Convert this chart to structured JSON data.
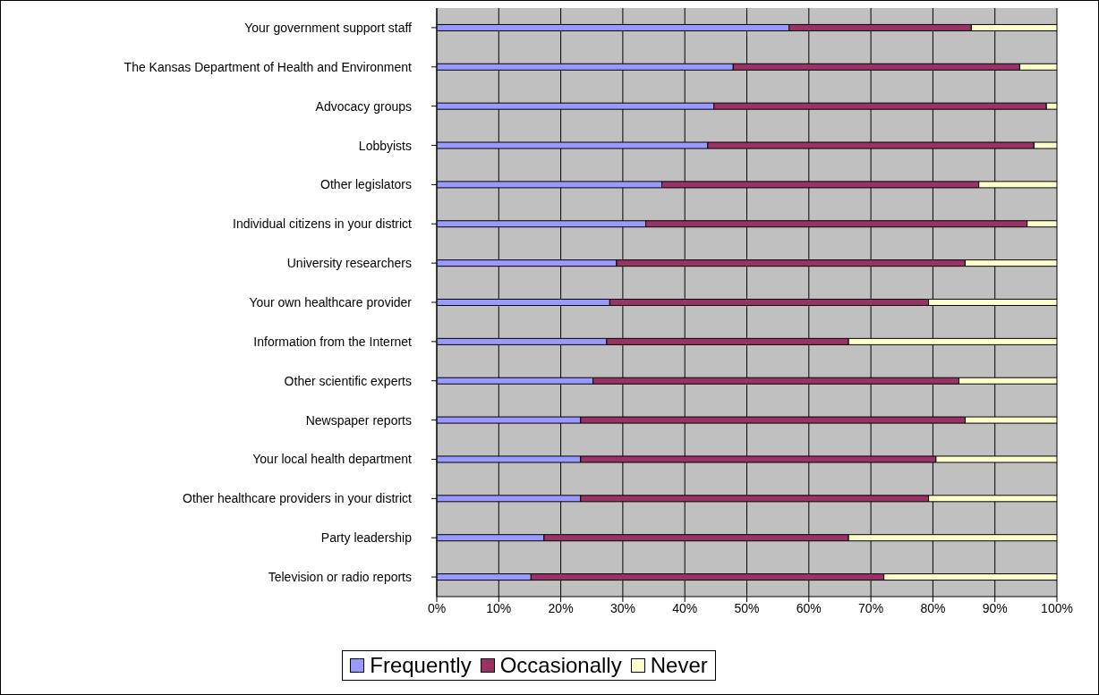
{
  "chart_data": {
    "type": "bar",
    "orientation": "horizontal",
    "stacked": true,
    "categories": [
      "Your government support staff",
      "The Kansas Department of Health and Environment",
      "Advocacy groups",
      "Lobbyists",
      "Other legislators",
      "Individual citizens in your district",
      "University researchers",
      "Your own healthcare provider",
      "Information from the Internet",
      "Other scientific experts",
      "Newspaper reports",
      "Your local health department",
      "Other healthcare providers in your district",
      "Party leadership",
      "Television or radio reports"
    ],
    "series": [
      {
        "name": "Frequently",
        "color": "#9999ff",
        "values": [
          56.8,
          47.8,
          44.7,
          43.7,
          36.3,
          33.7,
          29.0,
          27.9,
          27.4,
          25.2,
          23.2,
          23.2,
          23.2,
          17.3,
          15.2
        ]
      },
      {
        "name": "Occasionally",
        "color": "#993366",
        "values": [
          29.4,
          46.2,
          53.6,
          52.6,
          51.1,
          61.5,
          56.2,
          51.4,
          39.0,
          59.0,
          62.0,
          57.3,
          56.1,
          49.1,
          56.9
        ]
      },
      {
        "name": "Never",
        "color": "#ffffcc",
        "values": [
          13.8,
          6.0,
          1.7,
          3.7,
          12.6,
          4.8,
          14.8,
          20.7,
          33.6,
          15.8,
          14.8,
          19.5,
          20.7,
          33.6,
          27.9
        ]
      }
    ],
    "xlim": [
      0,
      100
    ],
    "xticks": [
      {
        "value": 0,
        "label": "0%"
      },
      {
        "value": 10,
        "label": "10%"
      },
      {
        "value": 20,
        "label": "20%"
      },
      {
        "value": 30,
        "label": "30%"
      },
      {
        "value": 40,
        "label": "40%"
      },
      {
        "value": 50,
        "label": "50%"
      },
      {
        "value": 60,
        "label": "60%"
      },
      {
        "value": 70,
        "label": "70%"
      },
      {
        "value": 80,
        "label": "80%"
      },
      {
        "value": 90,
        "label": "90%"
      },
      {
        "value": 100,
        "label": "100%"
      }
    ],
    "grid": "x",
    "legend": "bottom"
  }
}
